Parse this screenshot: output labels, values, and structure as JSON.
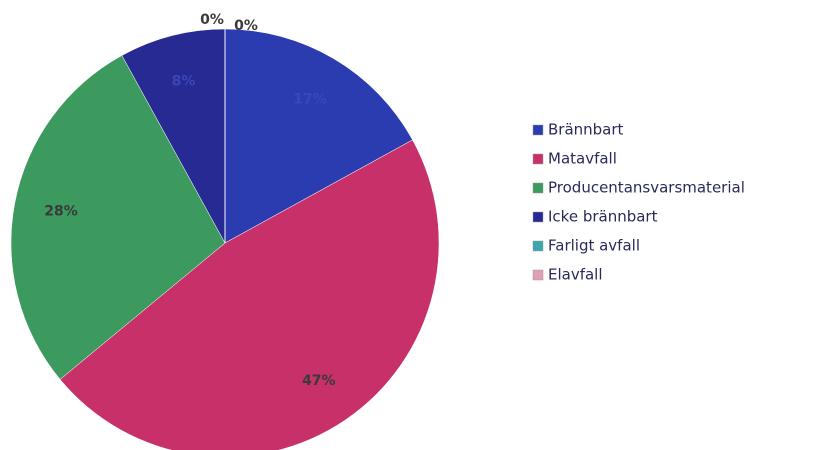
{
  "chart_data": {
    "type": "pie",
    "categories": [
      "Brännbart",
      "Matavfall",
      "Producentansvarsmaterial",
      "Icke brännbart",
      "Farligt avfall",
      "Elavfall"
    ],
    "values": [
      17,
      47,
      28,
      8,
      0,
      0
    ],
    "value_labels": [
      "17%",
      "47%",
      "28%",
      "8%",
      "0%",
      "0%"
    ],
    "colors": [
      "#2b3cb0",
      "#c8306a",
      "#3c9a5e",
      "#262a92",
      "#3aa6b0",
      "#e0a0b8"
    ],
    "legend": "right"
  }
}
